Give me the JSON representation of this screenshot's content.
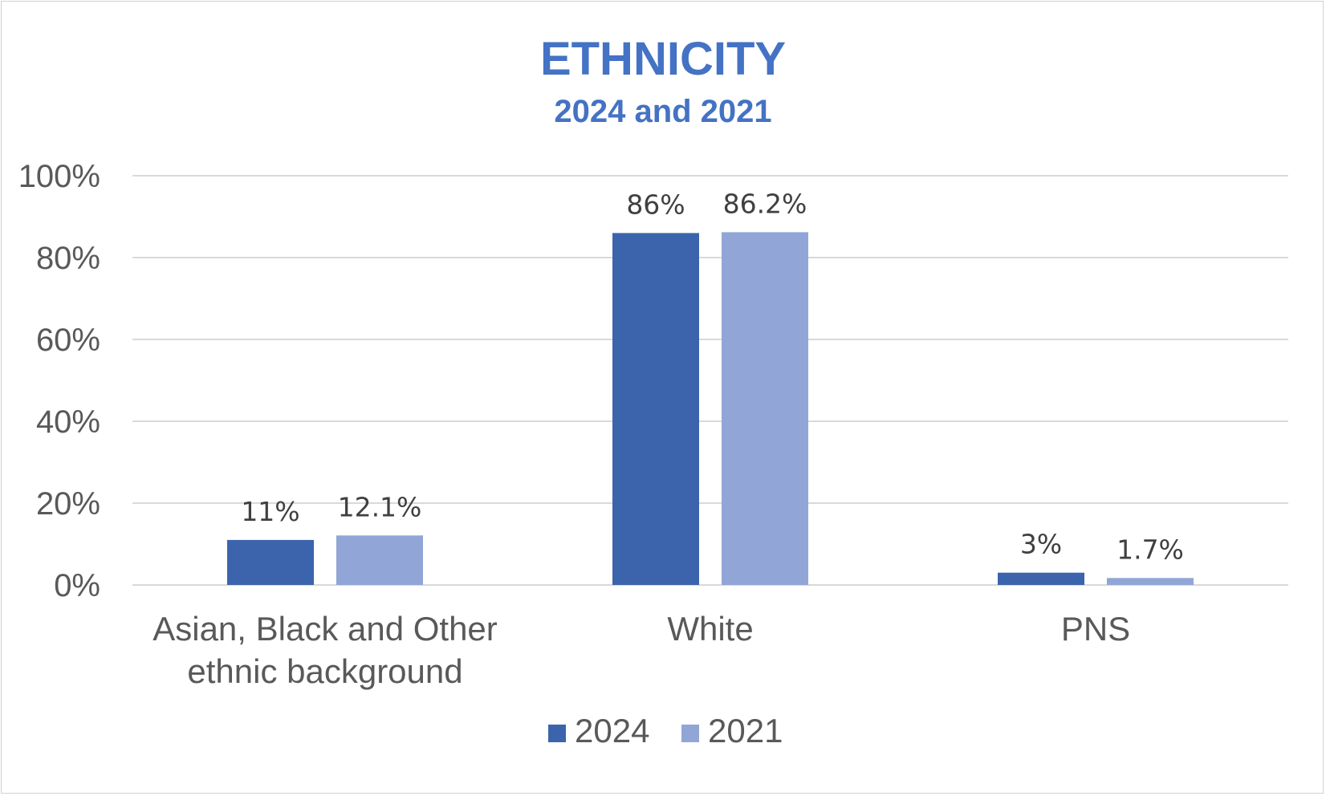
{
  "chart_data": {
    "type": "bar",
    "title": "ETHNICITY",
    "subtitle": "2024 and 2021",
    "categories": [
      [
        "Asian, Black and Other",
        "ethnic background"
      ],
      [
        "White"
      ],
      [
        "PNS"
      ]
    ],
    "series": [
      {
        "name": "2024",
        "values": [
          11,
          86,
          3
        ],
        "labels": [
          "11%",
          "86%",
          "3%"
        ],
        "color": "#3c64ad"
      },
      {
        "name": "2021",
        "values": [
          12.1,
          86.2,
          1.7
        ],
        "labels": [
          "12.1%",
          "86.2%",
          "1.7%"
        ],
        "color": "#91a6d6"
      }
    ],
    "y_ticks": [
      "0%",
      "20%",
      "40%",
      "60%",
      "80%",
      "100%"
    ],
    "ylim": [
      0,
      100
    ],
    "grid": true,
    "legend_position": "bottom"
  }
}
